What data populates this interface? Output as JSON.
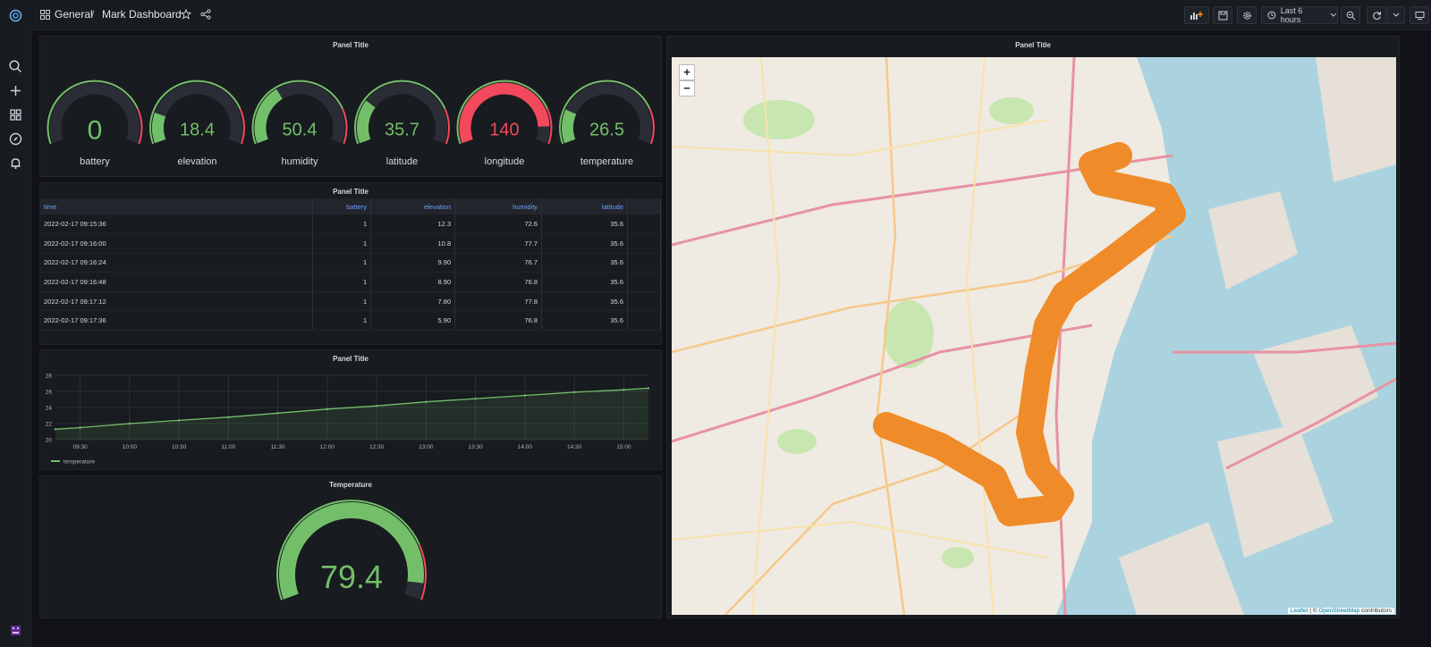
{
  "breadcrumb": {
    "folder": "General",
    "separator": "/",
    "dashboard": "Mark Dashboard"
  },
  "toolbar": {
    "time_range": "Last 6 hours"
  },
  "colors": {
    "green": "#73bf69",
    "red": "#f2495c",
    "orange": "#f08b29",
    "blue": "#6e9fff",
    "panel_bg": "#181b1f"
  },
  "sidebar": {
    "icons": [
      "grafana-logo-icon",
      "search-icon",
      "plus-icon",
      "dashboards-icon",
      "compass-icon",
      "bell-icon",
      "user-avatar-icon"
    ]
  },
  "gauges_panel": {
    "title": "Panel Title",
    "gauges": [
      {
        "label": "battery",
        "value": "0",
        "fraction": 0.0,
        "color": "#73bf69"
      },
      {
        "label": "elevation",
        "value": "18.4",
        "fraction": 0.18,
        "color": "#73bf69"
      },
      {
        "label": "humidity",
        "value": "50.4",
        "fraction": 0.36,
        "color": "#73bf69"
      },
      {
        "label": "latitude",
        "value": "35.7",
        "fraction": 0.26,
        "color": "#73bf69"
      },
      {
        "label": "longitude",
        "value": "140",
        "fraction": 0.9,
        "color": "#f2495c"
      },
      {
        "label": "temperature",
        "value": "26.5",
        "fraction": 0.2,
        "color": "#73bf69"
      }
    ]
  },
  "table_panel": {
    "title": "Panel Title",
    "columns": [
      "time",
      "battery",
      "elevation",
      "humidity",
      "latitude"
    ],
    "rows": [
      [
        "2022-02-17 09:15:36",
        "1",
        "12.3",
        "72.6",
        "35.6"
      ],
      [
        "2022-02-17 09:16:00",
        "1",
        "10.8",
        "77.7",
        "35.6"
      ],
      [
        "2022-02-17 09:16:24",
        "1",
        "9.90",
        "76.7",
        "35.6"
      ],
      [
        "2022-02-17 09:16:48",
        "1",
        "8.90",
        "76.8",
        "35.6"
      ],
      [
        "2022-02-17 09:17:12",
        "1",
        "7.80",
        "77.8",
        "35.6"
      ],
      [
        "2022-02-17 09:17:36",
        "1",
        "5.90",
        "76.8",
        "35.6"
      ]
    ]
  },
  "timeseries_panel": {
    "title": "Panel Title"
  },
  "temperature_panel": {
    "title": "Temperature",
    "value": "79.4",
    "fraction": 0.94
  },
  "map_panel": {
    "title": "Panel Title",
    "zoom_in": "+",
    "zoom_out": "−",
    "attribution": {
      "leaflet": "Leaflet",
      "separator": " | © ",
      "osm": "OpenStreetMap",
      "suffix": " contributors"
    }
  },
  "chart_data": {
    "type": "line",
    "title": "",
    "xlabel": "",
    "ylabel": "",
    "x_ticks": [
      "09:30",
      "10:00",
      "10:30",
      "11:00",
      "11:30",
      "12:00",
      "12:30",
      "13:00",
      "13:30",
      "14:00",
      "14:30",
      "15:00"
    ],
    "y_ticks": [
      20,
      22,
      24,
      26,
      28
    ],
    "ylim": [
      20,
      28
    ],
    "grid": true,
    "legend_position": "bottom-left",
    "series": [
      {
        "name": "temperature",
        "color": "#73bf69",
        "x": [
          "09:15",
          "09:30",
          "10:00",
          "10:30",
          "11:00",
          "11:30",
          "12:00",
          "12:30",
          "13:00",
          "13:30",
          "14:00",
          "14:30",
          "15:00",
          "15:15"
        ],
        "y": [
          21.3,
          21.5,
          22.0,
          22.4,
          22.8,
          23.3,
          23.8,
          24.2,
          24.7,
          25.1,
          25.5,
          25.9,
          26.2,
          26.4
        ]
      }
    ]
  }
}
